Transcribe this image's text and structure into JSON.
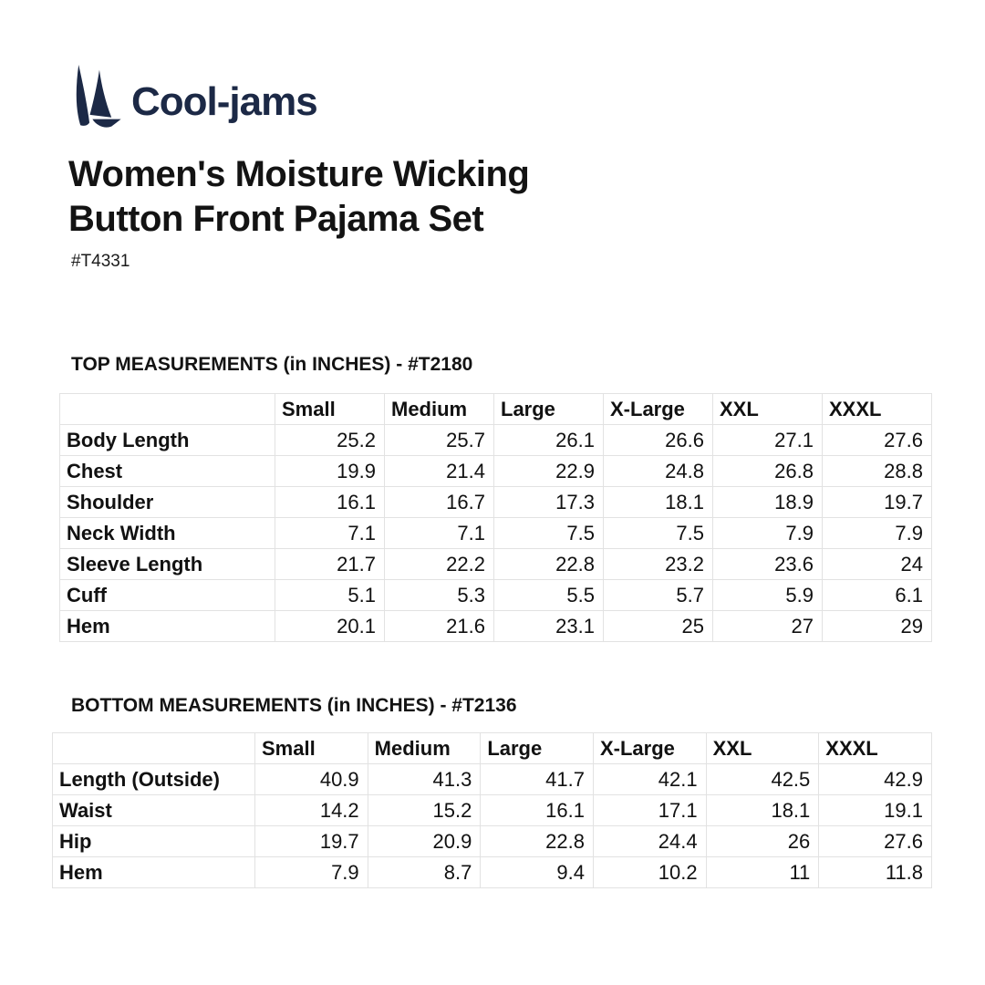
{
  "logo": {
    "brand": "Cool-jams",
    "icon": "sailboat-icon",
    "color": "#1c2946"
  },
  "title": {
    "lines": [
      "Women's Moisture Wicking",
      "Button Front Pajama Set"
    ]
  },
  "product_code": "#T4331",
  "tables": [
    {
      "title": "TOP MEASUREMENTS (in INCHES) - #T2180",
      "columns": [
        "",
        "Small",
        "Medium",
        "Large",
        "X-Large",
        "XXL",
        "XXXL"
      ],
      "rows": [
        {
          "label": "Body Length",
          "values": [
            "25.2",
            "25.7",
            "26.1",
            "26.6",
            "27.1",
            "27.6"
          ]
        },
        {
          "label": "Chest",
          "values": [
            "19.9",
            "21.4",
            "22.9",
            "24.8",
            "26.8",
            "28.8"
          ]
        },
        {
          "label": "Shoulder",
          "values": [
            "16.1",
            "16.7",
            "17.3",
            "18.1",
            "18.9",
            "19.7"
          ]
        },
        {
          "label": "Neck Width",
          "values": [
            "7.1",
            "7.1",
            "7.5",
            "7.5",
            "7.9",
            "7.9"
          ]
        },
        {
          "label": "Sleeve Length",
          "values": [
            "21.7",
            "22.2",
            "22.8",
            "23.2",
            "23.6",
            "24"
          ]
        },
        {
          "label": "Cuff",
          "values": [
            "5.1",
            "5.3",
            "5.5",
            "5.7",
            "5.9",
            "6.1"
          ]
        },
        {
          "label": "Hem",
          "values": [
            "20.1",
            "21.6",
            "23.1",
            "25",
            "27",
            "29"
          ]
        }
      ]
    },
    {
      "title": "BOTTOM MEASUREMENTS (in INCHES) - #T2136",
      "columns": [
        "",
        "Small",
        "Medium",
        "Large",
        "X-Large",
        "XXL",
        "XXXL"
      ],
      "rows": [
        {
          "label": "Length (Outside)",
          "values": [
            "40.9",
            "41.3",
            "41.7",
            "42.1",
            "42.5",
            "42.9"
          ]
        },
        {
          "label": "Waist",
          "values": [
            "14.2",
            "15.2",
            "16.1",
            "17.1",
            "18.1",
            "19.1"
          ]
        },
        {
          "label": "Hip",
          "values": [
            "19.7",
            "20.9",
            "22.8",
            "24.4",
            "26",
            "27.6"
          ]
        },
        {
          "label": "Hem",
          "values": [
            "7.9",
            "8.7",
            "9.4",
            "10.2",
            "11",
            "11.8"
          ]
        }
      ]
    }
  ]
}
